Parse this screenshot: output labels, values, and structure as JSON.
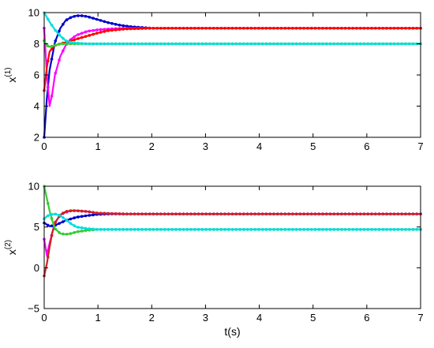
{
  "chart_data": [
    {
      "type": "line",
      "ylabel": "x",
      "ylabel_sup": "(1)",
      "xlabel": "",
      "xlim": [
        0,
        7
      ],
      "ylim": [
        2,
        10
      ],
      "xticks": [
        "0",
        "1",
        "2",
        "3",
        "4",
        "5",
        "6",
        "7"
      ],
      "yticks": [
        "2",
        "4",
        "6",
        "8",
        "10"
      ],
      "grid": false,
      "series": [
        {
          "color": "#0000cc",
          "x": [
            0,
            0.05,
            0.1,
            0.2,
            0.3,
            0.4,
            0.5,
            0.6,
            0.7,
            0.8,
            0.9,
            1.0,
            1.2,
            1.4,
            1.6,
            1.8,
            2.0,
            2.5,
            3,
            4,
            5,
            6,
            7
          ],
          "y": [
            2.0,
            4.5,
            6.3,
            8.1,
            9.0,
            9.5,
            9.7,
            9.8,
            9.8,
            9.75,
            9.65,
            9.55,
            9.35,
            9.2,
            9.1,
            9.05,
            9.0,
            9.0,
            9.0,
            9.0,
            9.0,
            9.0,
            9.0
          ]
        },
        {
          "color": "#ff00ff",
          "x": [
            0,
            0.05,
            0.1,
            0.15,
            0.2,
            0.3,
            0.4,
            0.5,
            0.6,
            0.8,
            1.0,
            1.2,
            1.5,
            2.0,
            3,
            4,
            5,
            6,
            7
          ],
          "y": [
            9.0,
            6.0,
            4.0,
            4.8,
            6.0,
            7.2,
            7.9,
            8.3,
            8.55,
            8.8,
            8.9,
            8.95,
            9.0,
            9.0,
            9.0,
            9.0,
            9.0,
            9.0,
            9.0
          ]
        },
        {
          "color": "#ff0000",
          "x": [
            0,
            0.05,
            0.1,
            0.2,
            0.3,
            0.4,
            0.5,
            0.6,
            0.8,
            1.0,
            1.2,
            1.5,
            2.0,
            3,
            4,
            5,
            6,
            7
          ],
          "y": [
            5.0,
            6.5,
            7.5,
            7.9,
            8.0,
            8.1,
            8.2,
            8.3,
            8.5,
            8.7,
            8.85,
            8.95,
            9.0,
            9.0,
            9.0,
            9.0,
            9.0,
            9.0
          ]
        },
        {
          "color": "#33cc33",
          "x": [
            0,
            0.05,
            0.1,
            0.2,
            0.3,
            0.5,
            1.0,
            2,
            3,
            4,
            5,
            6,
            7
          ],
          "y": [
            8.2,
            7.9,
            7.8,
            7.9,
            8.0,
            8.0,
            8.0,
            8.0,
            8.0,
            8.0,
            8.0,
            8.0,
            8.0
          ]
        },
        {
          "color": "#00dddd",
          "x": [
            0,
            0.05,
            0.1,
            0.2,
            0.3,
            0.4,
            0.5,
            0.6,
            0.8,
            1.0,
            2,
            3,
            4,
            5,
            6,
            7
          ],
          "y": [
            10.0,
            9.7,
            9.4,
            8.9,
            8.5,
            8.2,
            8.1,
            8.05,
            8.0,
            8.0,
            8.0,
            8.0,
            8.0,
            8.0,
            8.0,
            8.0
          ]
        }
      ]
    },
    {
      "type": "line",
      "ylabel": "x",
      "ylabel_sup": "(2)",
      "xlabel": "t(s)",
      "xlim": [
        0,
        7
      ],
      "ylim": [
        -5,
        10
      ],
      "xticks": [
        "0",
        "1",
        "2",
        "3",
        "4",
        "5",
        "6",
        "7"
      ],
      "yticks": [
        "-5",
        "0",
        "5",
        "10"
      ],
      "grid": false,
      "series": [
        {
          "color": "#0000cc",
          "x": [
            0,
            0.1,
            0.2,
            0.3,
            0.4,
            0.5,
            0.6,
            0.8,
            1.0,
            1.2,
            1.5,
            2,
            3,
            4,
            5,
            6,
            7
          ],
          "y": [
            5.5,
            5.1,
            5.2,
            5.5,
            5.8,
            6.0,
            6.2,
            6.4,
            6.55,
            6.6,
            6.6,
            6.6,
            6.6,
            6.6,
            6.6,
            6.6,
            6.6
          ]
        },
        {
          "color": "#ff00ff",
          "x": [
            0,
            0.05,
            0.1,
            0.2,
            0.3,
            0.4,
            0.5,
            0.6,
            0.8,
            1.0,
            1.5,
            2,
            3,
            4,
            5,
            6,
            7
          ],
          "y": [
            3.5,
            1.5,
            3.0,
            5.5,
            6.5,
            6.8,
            7.0,
            7.0,
            6.9,
            6.7,
            6.6,
            6.6,
            6.6,
            6.6,
            6.6,
            6.6,
            6.6
          ]
        },
        {
          "color": "#cc2222",
          "x": [
            0,
            0.05,
            0.1,
            0.15,
            0.2,
            0.3,
            0.4,
            0.5,
            0.6,
            0.8,
            1.0,
            1.5,
            2,
            3,
            4,
            5,
            6,
            7
          ],
          "y": [
            -1.0,
            0.5,
            2.5,
            4.3,
            5.5,
            6.5,
            6.9,
            7.0,
            7.0,
            6.9,
            6.7,
            6.6,
            6.6,
            6.6,
            6.6,
            6.6,
            6.6,
            6.6
          ]
        },
        {
          "color": "#33cc33",
          "x": [
            0,
            0.05,
            0.1,
            0.15,
            0.2,
            0.3,
            0.4,
            0.5,
            0.6,
            0.8,
            1.0,
            1.5,
            2,
            3,
            4,
            5,
            6,
            7
          ],
          "y": [
            10.0,
            8.5,
            7.0,
            5.8,
            4.8,
            4.2,
            4.1,
            4.2,
            4.4,
            4.6,
            4.7,
            4.7,
            4.7,
            4.7,
            4.7,
            4.7,
            4.7,
            4.7
          ]
        },
        {
          "color": "#00dddd",
          "x": [
            0,
            0.05,
            0.1,
            0.2,
            0.3,
            0.4,
            0.5,
            0.6,
            0.8,
            1.0,
            1.5,
            2,
            3,
            4,
            5,
            6,
            7
          ],
          "y": [
            6.0,
            6.3,
            6.5,
            6.6,
            6.4,
            5.9,
            5.4,
            5.0,
            4.8,
            4.7,
            4.7,
            4.7,
            4.7,
            4.7,
            4.7,
            4.7,
            4.7
          ]
        }
      ]
    }
  ]
}
